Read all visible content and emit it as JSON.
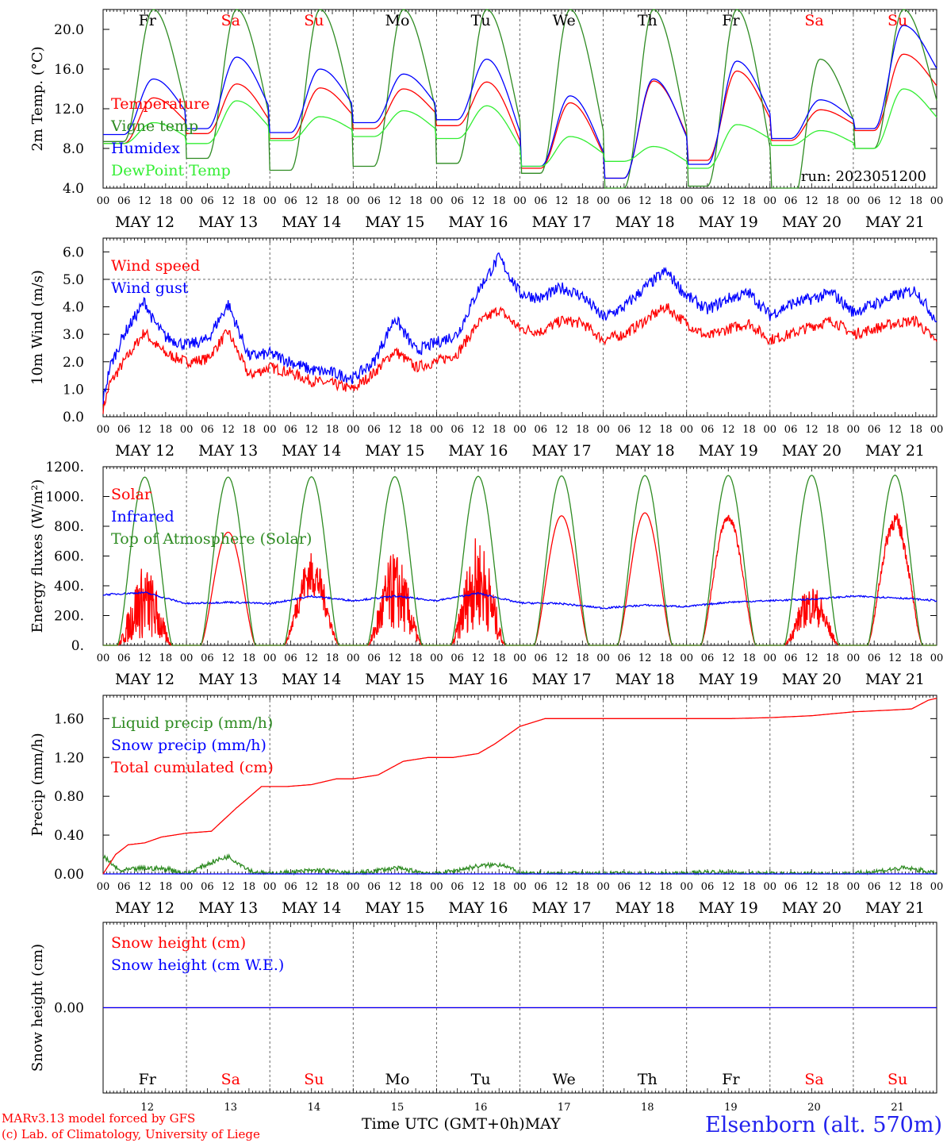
{
  "day_labels": [
    {
      "text": "Fr",
      "color": "#000000"
    },
    {
      "text": "Sa",
      "color": "#ff0000"
    },
    {
      "text": "Su",
      "color": "#ff0000"
    },
    {
      "text": "Mo",
      "color": "#000000"
    },
    {
      "text": "Tu",
      "color": "#000000"
    },
    {
      "text": "We",
      "color": "#000000"
    },
    {
      "text": "Th",
      "color": "#000000"
    },
    {
      "text": "Fr",
      "color": "#000000"
    },
    {
      "text": "Sa",
      "color": "#ff0000"
    },
    {
      "text": "Su",
      "color": "#ff0000"
    }
  ],
  "date_labels": [
    "MAY 12",
    "MAY 13",
    "MAY 14",
    "MAY 15",
    "MAY 16",
    "MAY 17",
    "MAY 18",
    "MAY 19",
    "MAY 20",
    "MAY 21"
  ],
  "hour_ticks": [
    "00",
    "06",
    "12",
    "18"
  ],
  "bottom_day_numbers": [
    "12",
    "13",
    "14",
    "15",
    "16",
    "17",
    "18",
    "19",
    "20",
    "21"
  ],
  "footer": {
    "model_line": "MARv3.13 model forced by GFS",
    "lab_line": "(c) Lab. of Climatology, University of Liege",
    "xlabel": "Time UTC (GMT+0h)",
    "month": "MAY",
    "station": "Elsenborn (alt. 570m)"
  },
  "chart_data": [
    {
      "type": "line",
      "ylabel": "2m Temp. (°C)",
      "ylim": [
        4.0,
        22.0
      ],
      "y_tick_labels": [
        "4.0",
        "8.0",
        "12.0",
        "16.0",
        "20.0"
      ],
      "annotation": "run: 2023051200",
      "legend_placement": "left",
      "series": [
        {
          "name": "Temperature",
          "color": "#ff0000",
          "kind": "diurnal",
          "min": [
            8.5,
            9.5,
            9.0,
            10.0,
            10.3,
            6.0,
            5.0,
            6.8,
            8.8,
            9.8,
            12.8
          ],
          "max": [
            13.1,
            14.5,
            14.1,
            14.0,
            14.7,
            12.6,
            14.8,
            15.8,
            11.9,
            17.5
          ]
        },
        {
          "name": "Vigne temp",
          "color": "#2e8b22",
          "kind": "diurnal",
          "min": [
            8.7,
            7.0,
            5.8,
            6.2,
            6.5,
            5.5,
            4.0,
            4.2,
            1.5,
            8.0,
            8.5
          ],
          "max": [
            22.0,
            22.0,
            22.0,
            22.0,
            22.0,
            22.0,
            22.0,
            22.0,
            17.0,
            22.0
          ]
        },
        {
          "name": "Humidex",
          "color": "#0000ff",
          "kind": "diurnal",
          "min": [
            9.4,
            10.0,
            9.6,
            10.6,
            10.9,
            6.2,
            5.0,
            6.4,
            9.0,
            10.0,
            14.0
          ],
          "max": [
            15.0,
            17.2,
            16.0,
            15.5,
            17.0,
            13.3,
            15.0,
            16.8,
            12.9,
            20.4
          ]
        },
        {
          "name": "DewPoint Temp",
          "color": "#33ee33",
          "kind": "diurnal",
          "min": [
            8.5,
            8.5,
            8.8,
            9.2,
            9.0,
            6.2,
            6.7,
            6.0,
            8.3,
            8.0,
            9.8
          ],
          "max": [
            10.6,
            12.8,
            11.2,
            11.8,
            12.3,
            9.2,
            8.2,
            10.4,
            9.8,
            14.0
          ]
        }
      ]
    },
    {
      "type": "line",
      "ylabel": "10m Wind (m/s)",
      "ylim": [
        0.0,
        6.5
      ],
      "y_tick_labels": [
        "0.0",
        "1.0",
        "2.0",
        "3.0",
        "4.0",
        "5.0",
        "6.0"
      ],
      "reference_line": 5.0,
      "legend_placement": "left",
      "series": [
        {
          "name": "Wind speed",
          "color": "#ff0000",
          "kind": "points",
          "noise": 0.2,
          "x": [
            0,
            0.08,
            0.25,
            0.5,
            0.6,
            0.75,
            1.0,
            1.25,
            1.5,
            1.75,
            2.0,
            2.25,
            2.5,
            2.75,
            3.0,
            3.25,
            3.5,
            3.75,
            4.0,
            4.25,
            4.5,
            4.75,
            5.0,
            5.25,
            5.5,
            5.75,
            6.0,
            6.25,
            6.5,
            6.75,
            7.0,
            7.25,
            7.5,
            7.75,
            8.0,
            8.25,
            8.5,
            8.75,
            9.0,
            9.25,
            9.5,
            9.75,
            10.0
          ],
          "y": [
            0.3,
            1.2,
            2.0,
            3.1,
            2.7,
            2.3,
            2.0,
            2.1,
            3.1,
            1.5,
            1.8,
            1.6,
            1.3,
            1.2,
            1.0,
            1.6,
            2.4,
            1.8,
            2.0,
            2.3,
            3.4,
            3.9,
            3.2,
            3.1,
            3.5,
            3.4,
            2.8,
            3.0,
            3.5,
            4.0,
            3.4,
            2.9,
            3.2,
            3.4,
            2.8,
            3.0,
            3.3,
            3.5,
            3.0,
            3.2,
            3.4,
            3.5,
            2.7
          ]
        },
        {
          "name": "Wind gust",
          "color": "#0000ff",
          "kind": "points",
          "noise": 0.22,
          "x": [
            0,
            0.08,
            0.25,
            0.5,
            0.6,
            0.75,
            1.0,
            1.25,
            1.5,
            1.75,
            2.0,
            2.25,
            2.5,
            2.75,
            3.0,
            3.25,
            3.5,
            3.75,
            4.0,
            4.25,
            4.5,
            4.75,
            5.0,
            5.25,
            5.5,
            5.75,
            6.0,
            6.25,
            6.5,
            6.75,
            7.0,
            7.25,
            7.5,
            7.75,
            8.0,
            8.25,
            8.5,
            8.75,
            9.0,
            9.25,
            9.5,
            9.75,
            10.0
          ],
          "y": [
            0.6,
            1.8,
            3.0,
            4.2,
            3.5,
            2.9,
            2.6,
            2.8,
            4.1,
            2.2,
            2.3,
            2.0,
            1.7,
            1.6,
            1.4,
            2.0,
            3.6,
            2.4,
            2.7,
            3.0,
            4.6,
            5.8,
            4.5,
            4.3,
            4.7,
            4.4,
            3.6,
            4.0,
            4.7,
            5.3,
            4.4,
            3.9,
            4.3,
            4.5,
            3.7,
            4.1,
            4.3,
            4.5,
            3.8,
            4.1,
            4.4,
            4.6,
            3.5
          ]
        }
      ]
    },
    {
      "type": "line",
      "ylabel": "Energy fluxes (W/m²)",
      "ylim": [
        0,
        1200
      ],
      "y_tick_labels": [
        "0.",
        "200.",
        "400.",
        "600.",
        "800.",
        "1000.",
        "1200."
      ],
      "legend_placement": "left",
      "series": [
        {
          "name": "Solar",
          "color": "#ff0000",
          "kind": "solar",
          "peaks": [
            400,
            760,
            540,
            480,
            560,
            870,
            890,
            870,
            330,
            860
          ],
          "jitter": [
            0.9,
            0.0,
            0.4,
            0.8,
            0.8,
            0.0,
            0.0,
            0.05,
            0.6,
            0.1
          ]
        },
        {
          "name": "Infrared",
          "color": "#0000ff",
          "kind": "points",
          "noise": 6,
          "x": [
            0,
            0.5,
            1.0,
            1.5,
            2.0,
            2.5,
            3.0,
            3.5,
            4.0,
            4.5,
            5.0,
            5.5,
            6.0,
            6.5,
            7.0,
            7.5,
            8.0,
            8.5,
            9.0,
            9.5,
            10.0
          ],
          "y": [
            340,
            355,
            280,
            290,
            280,
            330,
            300,
            330,
            300,
            350,
            285,
            280,
            250,
            270,
            260,
            290,
            300,
            310,
            330,
            320,
            300
          ]
        },
        {
          "name": "Top of Atmosphere (Solar)",
          "color": "#2e8b22",
          "kind": "solar",
          "peaks": [
            1130,
            1130,
            1132,
            1133,
            1135,
            1138,
            1140,
            1141,
            1142,
            1143
          ],
          "jitter": [
            0,
            0,
            0,
            0,
            0,
            0,
            0,
            0,
            0,
            0
          ]
        }
      ]
    },
    {
      "type": "line",
      "ylabel": "Precip (mm/h)",
      "ylim": [
        0.0,
        1.84
      ],
      "y_tick_labels": [
        "0.00",
        "0.40",
        "0.80",
        "1.20",
        "1.60"
      ],
      "legend_placement": "left",
      "series": [
        {
          "name": "Liquid precip (mm/h)",
          "color": "#2e8b22",
          "kind": "points",
          "noise": 0.025,
          "x": [
            0,
            0.2,
            0.5,
            0.8,
            1.0,
            1.3,
            1.5,
            1.8,
            2.0,
            2.6,
            2.8,
            3.0,
            3.5,
            3.8,
            4.0,
            4.5,
            4.8,
            5.0,
            5.5,
            6.0,
            7.0,
            7.2,
            8.0,
            9.0,
            9.6,
            9.8,
            10.0
          ],
          "y": [
            0.18,
            0.03,
            0.06,
            0.05,
            0.0,
            0.12,
            0.18,
            0.02,
            0.0,
            0.04,
            0.02,
            0.0,
            0.06,
            0.02,
            0.0,
            0.08,
            0.1,
            0.0,
            0.0,
            0.0,
            0.0,
            0.02,
            0.0,
            0.0,
            0.06,
            0.04,
            0.0
          ]
        },
        {
          "name": "Snow precip (mm/h)",
          "color": "#0000ff",
          "kind": "points",
          "noise": 0,
          "x": [
            0,
            10.0
          ],
          "y": [
            0.0,
            0.0
          ]
        },
        {
          "name": "Total cumulated (cm)",
          "color": "#ff0000",
          "kind": "points",
          "noise": 0,
          "x": [
            0,
            0.15,
            0.3,
            0.5,
            0.7,
            1.0,
            1.3,
            1.6,
            1.9,
            2.2,
            2.5,
            2.8,
            3.0,
            3.3,
            3.6,
            3.9,
            4.2,
            4.5,
            4.7,
            4.9,
            5.0,
            5.3,
            5.6,
            6.0,
            7.0,
            7.5,
            8.0,
            8.5,
            9.0,
            9.5,
            9.7,
            9.9,
            10.0
          ],
          "y": [
            0.0,
            0.2,
            0.3,
            0.32,
            0.38,
            0.42,
            0.44,
            0.68,
            0.9,
            0.9,
            0.92,
            0.98,
            0.98,
            1.02,
            1.16,
            1.2,
            1.2,
            1.24,
            1.34,
            1.46,
            1.52,
            1.6,
            1.6,
            1.6,
            1.6,
            1.6,
            1.61,
            1.63,
            1.67,
            1.69,
            1.7,
            1.79,
            1.81
          ]
        }
      ]
    },
    {
      "type": "line",
      "ylabel": "Snow height (cm)",
      "ylim": [
        -1.0,
        1.0
      ],
      "y_tick_labels": [
        "0.00"
      ],
      "legend_placement": "left",
      "series": [
        {
          "name": "Snow height (cm)",
          "color": "#ff0000",
          "kind": "points",
          "noise": 0,
          "x": [
            0,
            10.0
          ],
          "y": [
            0.0,
            0.0
          ]
        },
        {
          "name": "Snow height (cm W.E.)",
          "color": "#0000ff",
          "kind": "points",
          "noise": 0,
          "x": [
            0,
            10.0
          ],
          "y": [
            0.0,
            0.0
          ]
        }
      ]
    }
  ]
}
